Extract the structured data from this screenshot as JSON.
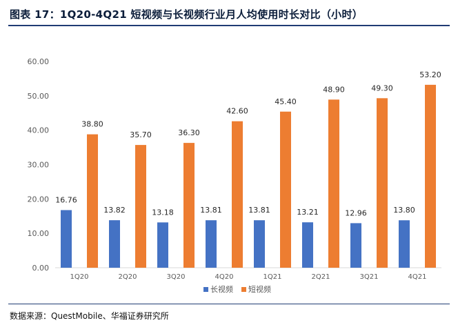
{
  "header": {
    "title": "图表 17：1Q20-4Q21 短视频与长视频行业月人均使用时长对比（小时）"
  },
  "footer": {
    "source": "数据来源：QuestMobile、华福证券研究所"
  },
  "colors": {
    "long": "#4472c4",
    "short": "#ed7d31",
    "axis": "#d9d9d9",
    "text": "#595959"
  },
  "chart_data": {
    "type": "bar",
    "title": "1Q20-4Q21 短视频与长视频行业月人均使用时长对比（小时）",
    "xlabel": "",
    "ylabel": "",
    "ylim": [
      0,
      60
    ],
    "yticks": [
      "0.00",
      "10.00",
      "20.00",
      "30.00",
      "40.00",
      "50.00",
      "60.00"
    ],
    "categories": [
      "1Q20",
      "2Q20",
      "3Q20",
      "4Q20",
      "1Q21",
      "2Q21",
      "3Q21",
      "4Q21"
    ],
    "series": [
      {
        "name": "长视频",
        "values": [
          16.76,
          13.82,
          13.18,
          13.81,
          13.81,
          13.21,
          12.96,
          13.8
        ],
        "labels": [
          "16.76",
          "13.82",
          "13.18",
          "13.81",
          "13.81",
          "13.21",
          "12.96",
          "13.80"
        ]
      },
      {
        "name": "短视频",
        "values": [
          38.8,
          35.7,
          36.3,
          42.6,
          45.4,
          48.9,
          49.3,
          53.2
        ],
        "labels": [
          "38.80",
          "35.70",
          "36.30",
          "42.60",
          "45.40",
          "48.90",
          "49.30",
          "53.20"
        ]
      }
    ],
    "grid": false,
    "legend": "bottom-center"
  }
}
